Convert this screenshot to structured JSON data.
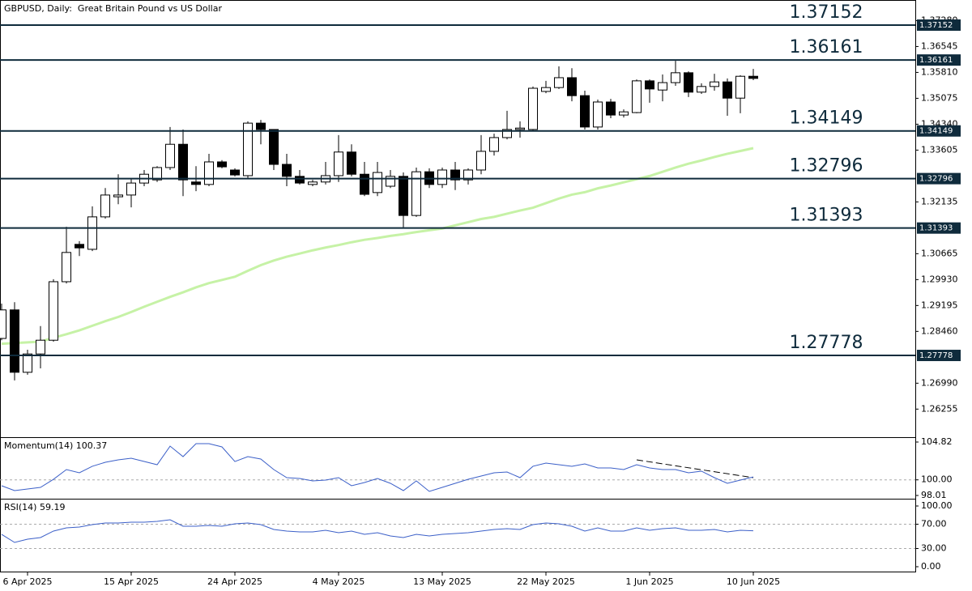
{
  "chart_data": [
    {
      "type": "candlestick",
      "title": "GBPUSD, Daily:  Great Britain Pound vs US Dollar",
      "categories": [
        null,
        null,
        "6 Apr 2025",
        null,
        null,
        null,
        null,
        null,
        null,
        null,
        "15 Apr 2025",
        null,
        null,
        null,
        null,
        null,
        null,
        null,
        "24 Apr 2025",
        null,
        null,
        null,
        null,
        null,
        null,
        null,
        "4 May 2025",
        null,
        null,
        null,
        null,
        null,
        null,
        null,
        "13 May 2025",
        null,
        null,
        null,
        null,
        null,
        null,
        null,
        "22 May 2025",
        null,
        null,
        null,
        null,
        null,
        null,
        null,
        "1 Jun 2025",
        null,
        null,
        null,
        null,
        null,
        null,
        null,
        "10 Jun 2025"
      ],
      "open": [
        1.2826,
        1.2907,
        1.273,
        1.2782,
        1.2821,
        1.2987,
        1.3093,
        1.3079,
        1.3171,
        1.3228,
        1.3233,
        1.3267,
        1.3276,
        1.3311,
        1.3377,
        1.327,
        1.3263,
        1.3327,
        1.3304,
        1.3288,
        1.3437,
        1.3419,
        1.332,
        1.3286,
        1.3263,
        1.327,
        1.3288,
        1.3355,
        1.3292,
        1.324,
        1.3258,
        1.3286,
        1.3175,
        1.3299,
        1.3263,
        1.3304,
        1.3276,
        1.3304,
        1.3357,
        1.3396,
        1.3419,
        1.3419,
        1.3527,
        1.3538,
        1.3566,
        1.3515,
        1.3426,
        1.3497,
        1.346,
        1.3467,
        1.3557,
        1.3531,
        1.3552,
        1.358,
        1.3525,
        1.3541,
        1.3554,
        1.3508,
        1.357
      ],
      "high": [
        1.2925,
        1.2929,
        1.2794,
        1.2861,
        1.2994,
        1.3143,
        1.3102,
        1.3201,
        1.3253,
        1.3292,
        1.3281,
        1.3304,
        1.3315,
        1.3426,
        1.3419,
        1.3315,
        1.335,
        1.3332,
        1.3309,
        1.3442,
        1.3446,
        1.3419,
        1.335,
        1.3304,
        1.3276,
        1.3327,
        1.3403,
        1.3377,
        1.3327,
        1.3327,
        1.3304,
        1.3297,
        1.3311,
        1.3309,
        1.3311,
        1.3327,
        1.3309,
        1.3403,
        1.3407,
        1.3472,
        1.3442,
        1.3541,
        1.3557,
        1.3598,
        1.3593,
        1.3529,
        1.3504,
        1.3506,
        1.3476,
        1.3561,
        1.3561,
        1.3575,
        1.3614,
        1.3584,
        1.355,
        1.3577,
        1.3564,
        1.3573,
        1.3591
      ],
      "low": [
        1.2821,
        1.2707,
        1.2723,
        1.2741,
        1.2817,
        1.2982,
        1.306,
        1.3074,
        1.3166,
        1.3207,
        1.3198,
        1.3258,
        1.327,
        1.3304,
        1.323,
        1.3244,
        1.3258,
        1.3309,
        1.3286,
        1.3281,
        1.3377,
        1.3304,
        1.3258,
        1.3263,
        1.3258,
        1.3263,
        1.327,
        1.3286,
        1.323,
        1.323,
        1.3253,
        1.3141,
        1.3171,
        1.3253,
        1.3253,
        1.3247,
        1.3263,
        1.3292,
        1.3345,
        1.3391,
        1.3396,
        1.3414,
        1.3522,
        1.3534,
        1.3499,
        1.3419,
        1.3419,
        1.3451,
        1.3453,
        1.3465,
        1.3495,
        1.3499,
        1.3543,
        1.3511,
        1.352,
        1.3529,
        1.3458,
        1.3465,
        1.3559
      ],
      "close": [
        1.2907,
        1.273,
        1.2782,
        1.2821,
        1.2987,
        1.307,
        1.3083,
        1.3171,
        1.3233,
        1.3233,
        1.3267,
        1.3292,
        1.3311,
        1.3377,
        1.3276,
        1.3263,
        1.3327,
        1.3313,
        1.329,
        1.3437,
        1.3419,
        1.332,
        1.3286,
        1.3267,
        1.327,
        1.3288,
        1.3355,
        1.3292,
        1.3235,
        1.3297,
        1.3286,
        1.3175,
        1.3299,
        1.3263,
        1.3304,
        1.3276,
        1.3304,
        1.3357,
        1.3396,
        1.3419,
        1.3423,
        1.3536,
        1.3538,
        1.3566,
        1.3515,
        1.3426,
        1.3497,
        1.346,
        1.3469,
        1.3557,
        1.3534,
        1.3552,
        1.358,
        1.3525,
        1.3541,
        1.3554,
        1.3508,
        1.357,
        1.3564
      ],
      "series": [
        {
          "color": "#c6f2a6",
          "values": [
            1.2811,
            1.2813,
            1.2815,
            1.2817,
            1.2828,
            1.2838,
            1.2849,
            1.2862,
            1.2875,
            1.2887,
            1.2901,
            1.2916,
            1.293,
            1.2944,
            1.2957,
            1.2971,
            1.2983,
            1.2992,
            1.3001,
            1.3018,
            1.3034,
            1.3047,
            1.3058,
            1.3067,
            1.3076,
            1.3084,
            1.3091,
            1.3099,
            1.3106,
            1.3111,
            1.3117,
            1.3122,
            1.3128,
            1.3133,
            1.3138,
            1.3147,
            1.3156,
            1.3165,
            1.3171,
            1.318,
            1.3189,
            1.3197,
            1.321,
            1.3223,
            1.3234,
            1.3241,
            1.3252,
            1.326,
            1.3269,
            1.3278,
            1.3287,
            1.3299,
            1.3311,
            1.3322,
            1.3331,
            1.3341,
            1.335,
            1.3358,
            1.3366
          ]
        }
      ],
      "levels": [
        1.37152,
        1.36161,
        1.34149,
        1.32796,
        1.31393,
        1.27778
      ],
      "level_color": "#0f2b3c",
      "ylim": [
        1.25504,
        1.37497
      ],
      "yticks": [
        {
          "value": 1.3728,
          "label": "1.37280"
        },
        1.36545,
        {
          "value": 1.3581,
          "label": "1.35810"
        },
        1.35075,
        {
          "value": 1.3434,
          "label": "1.34340"
        },
        1.33605,
        1.32135,
        1.30665,
        {
          "value": 1.2993,
          "label": "1.29930"
        },
        1.29195,
        {
          "value": 1.2846,
          "label": "1.28460"
        },
        {
          "value": 1.2699,
          "label": "1.26990"
        },
        1.26255
      ]
    },
    {
      "type": "line",
      "title": "Momentum(14) 100.37",
      "series": [
        {
          "color": "#3b5fc8",
          "values": [
            99.25,
            98.63,
            98.84,
            99.04,
            100.07,
            101.31,
            100.9,
            101.73,
            102.24,
            102.55,
            102.76,
            102.34,
            101.93,
            104.3,
            102.96,
            104.61,
            104.61,
            104.2,
            102.34,
            102.96,
            102.65,
            101.31,
            100.28,
            100.18,
            99.87,
            99.97,
            100.28,
            99.25,
            99.66,
            100.18,
            99.56,
            98.63,
            99.87,
            98.53,
            99.04,
            99.56,
            100.07,
            100.49,
            100.9,
            101.0,
            100.28,
            101.73,
            102.14,
            101.93,
            101.73,
            102.03,
            101.52,
            101.52,
            101.31,
            101.93,
            101.52,
            101.31,
            101.31,
            100.9,
            101.11,
            100.28,
            99.56,
            99.97,
            100.37
          ]
        }
      ],
      "ylim": [
        98.01,
        104.82
      ],
      "yticks": [
        104.82,
        {
          "value": 100,
          "label": "100.00"
        },
        98.01
      ],
      "levels": [
        100
      ]
    },
    {
      "type": "line",
      "title": "RSI(14) 59.19",
      "series": [
        {
          "color": "#3b5fc8",
          "values": [
            53.3,
            40,
            45.3,
            48,
            58.7,
            64,
            65.3,
            69.3,
            72,
            72,
            73.3,
            73.3,
            74.7,
            77.3,
            66.7,
            66.7,
            68,
            66.7,
            70.7,
            72,
            69.3,
            61.3,
            58.7,
            57.3,
            57.3,
            60,
            56,
            58.7,
            53.3,
            56,
            50.7,
            48,
            53.3,
            50.7,
            53.3,
            54.7,
            56,
            58.7,
            61.3,
            62.7,
            61.3,
            69.3,
            72,
            70.7,
            66.7,
            58.7,
            64,
            58.7,
            58.7,
            64,
            60,
            62.7,
            64,
            60,
            60,
            61.3,
            57.3,
            60,
            59.19
          ]
        }
      ],
      "ylim": [
        0,
        100
      ],
      "yticks": [
        {
          "value": 100,
          "label": "100.00"
        },
        {
          "value": 70,
          "label": "70.00"
        },
        {
          "value": 30,
          "label": "30.00"
        },
        {
          "value": 0,
          "label": "0.00"
        }
      ],
      "levels": [
        70,
        30
      ]
    }
  ]
}
